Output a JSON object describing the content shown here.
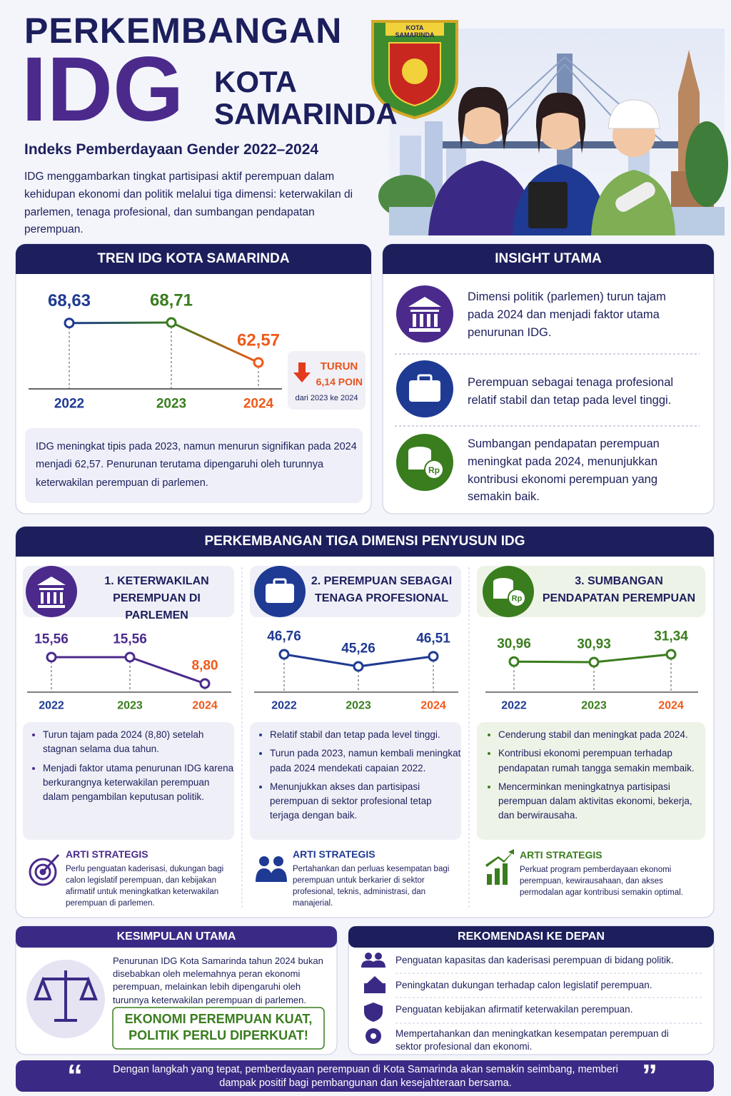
{
  "header": {
    "title_top": "PERKEMBANGAN",
    "title_main": "IDG",
    "title_city": "KOTA SAMARINDA",
    "logo_text": "KOTA SAMARINDA",
    "subtitle": "Indeks Pemberdayaan Gender 2022–2024",
    "description": "IDG menggambarkan tingkat partisipasi aktif perempuan dalam kehidupan ekonomi dan politik melalui tiga dimensi: keterwakilan di parlemen, tenaga profesional, dan sumbangan pendapatan perempuan."
  },
  "trend": {
    "heading": "TREN IDG KOTA SAMARINDA",
    "chart_data": {
      "type": "line",
      "categories": [
        "2022",
        "2023",
        "2024"
      ],
      "values": [
        68.63,
        68.71,
        62.57
      ],
      "value_labels": [
        "68,63",
        "68,71",
        "62,57"
      ],
      "point_colors": [
        "#1f3a93",
        "#3a7d1e",
        "#f05a1a"
      ],
      "label_colors": [
        "#1f3a93",
        "#3a7d1e",
        "#f05a1a"
      ],
      "category_colors": [
        "#1f3a93",
        "#3a7d1e",
        "#f05a1a"
      ]
    },
    "badge": {
      "label": "TURUN",
      "amount": "6,14 POIN",
      "note": "dari 2023 ke 2024"
    },
    "summary": "IDG meningkat tipis pada 2023, namun menurun signifikan pada 2024 menjadi 62,57. Penurunan terutama dipengaruhi oleh turunnya keterwakilan perempuan di parlemen."
  },
  "insight": {
    "heading": "INSIGHT UTAMA",
    "items": [
      {
        "text": "Dimensi politik (parlemen) turun tajam pada 2024 dan menjadi faktor utama penurunan IDG."
      },
      {
        "text": "Perempuan sebagai tenaga profesional relatif stabil dan tetap pada level tinggi."
      },
      {
        "text": "Sumbangan pendapatan perempuan meningkat pada 2024, menunjukkan kontribusi ekonomi perempuan yang semakin baik.",
        "icon_text": "Rp"
      }
    ]
  },
  "dimensions": {
    "heading": "PERKEMBANGAN TIGA DIMENSI PENYUSUN IDG",
    "items": [
      {
        "title": "1. KETERWAKILAN PEREMPUAN DI PARLEMEN",
        "chart_data": {
          "type": "line",
          "categories": [
            "2022",
            "2023",
            "2024"
          ],
          "values": [
            15.56,
            15.56,
            8.8
          ],
          "value_labels": [
            "15,56",
            "15,56",
            "8,80"
          ],
          "point_colors": [
            "#4b2a8c",
            "#4b2a8c",
            "#4b2a8c"
          ],
          "label_colors": [
            "#4b2a8c",
            "#4b2a8c",
            "#f05a1a"
          ],
          "category_colors": [
            "#1f3a93",
            "#3a7d1e",
            "#f05a1a"
          ]
        },
        "bullets": [
          "Turun tajam pada 2024 (8,80) setelah stagnan selama dua tahun.",
          "Menjadi faktor utama penurunan IDG karena berkurangnya keterwakilan perempuan dalam pengambilan keputusan politik."
        ],
        "strategy": {
          "heading": "ARTI STRATEGIS",
          "text": "Perlu penguatan kaderisasi, dukungan bagi calon legislatif perempuan, dan kebijakan afirmatif untuk meningkatkan keterwakilan perempuan di parlemen."
        }
      },
      {
        "title": "2. PEREMPUAN SEBAGAI TENAGA PROFESIONAL",
        "chart_data": {
          "type": "line",
          "categories": [
            "2022",
            "2023",
            "2024"
          ],
          "values": [
            46.76,
            45.26,
            46.51
          ],
          "value_labels": [
            "46,76",
            "45,26",
            "46,51"
          ],
          "point_colors": [
            "#1f3a93",
            "#1f3a93",
            "#1f3a93"
          ],
          "label_colors": [
            "#1f3a93",
            "#1f3a93",
            "#1f3a93"
          ],
          "category_colors": [
            "#1f3a93",
            "#3a7d1e",
            "#f05a1a"
          ]
        },
        "bullets": [
          "Relatif stabil dan tetap pada level tinggi.",
          "Turun pada 2023, namun kembali meningkat pada 2024 mendekati capaian 2022.",
          "Menunjukkan akses dan partisipasi perempuan di sektor profesional tetap terjaga dengan baik."
        ],
        "strategy": {
          "heading": "ARTI STRATEGIS",
          "text": "Pertahankan dan perluas kesempatan bagi perempuan untuk berkarier di sektor profesional, teknis, administrasi, dan manajerial."
        }
      },
      {
        "title": "3. SUMBANGAN PENDAPATAN PEREMPUAN",
        "icon_text": "Rp",
        "chart_data": {
          "type": "line",
          "categories": [
            "2022",
            "2023",
            "2024"
          ],
          "values": [
            30.96,
            30.93,
            31.34
          ],
          "value_labels": [
            "30,96",
            "30,93",
            "31,34"
          ],
          "point_colors": [
            "#3a7d1e",
            "#3a7d1e",
            "#3a7d1e"
          ],
          "label_colors": [
            "#3a7d1e",
            "#3a7d1e",
            "#3a7d1e"
          ],
          "category_colors": [
            "#1f3a93",
            "#3a7d1e",
            "#f05a1a"
          ]
        },
        "bullets": [
          "Cenderung stabil dan meningkat pada 2024.",
          "Kontribusi ekonomi perempuan terhadap pendapatan rumah tangga semakin membaik.",
          "Mencerminkan meningkatnya partisipasi perempuan dalam aktivitas ekonomi, bekerja, dan berwirausaha."
        ],
        "strategy": {
          "heading": "ARTI STRATEGIS",
          "text": "Perkuat program pemberdayaan ekonomi perempuan, kewirausahaan, dan akses permodalan agar kontribusi semakin optimal."
        }
      }
    ]
  },
  "conclusion": {
    "heading": "KESIMPULAN UTAMA",
    "text": "Penurunan IDG Kota Samarinda tahun 2024 bukan disebabkan oleh melemahnya peran ekonomi perempuan, melainkan lebih dipengaruhi oleh turunnya keterwakilan perempuan di parlemen.",
    "slogan": "EKONOMI PEREMPUAN KUAT, POLITIK PERLU DIPERKUAT!"
  },
  "recommendations": {
    "heading": "REKOMENDASI KE DEPAN",
    "items": [
      "Penguatan kapasitas dan kaderisasi perempuan di bidang politik.",
      "Peningkatan dukungan terhadap calon legislatif perempuan.",
      "Penguatan kebijakan afirmatif keterwakilan perempuan.",
      "Mempertahankan dan meningkatkan kesempatan perempuan di sektor profesional dan ekonomi."
    ]
  },
  "quote": {
    "open": "“",
    "text": "Dengan langkah yang tepat, pemberdayaan perempuan di Kota Samarinda akan semakin seimbang, memberi dampak positif bagi pembangunan dan kesejahteraan bersama.",
    "close": "”"
  }
}
